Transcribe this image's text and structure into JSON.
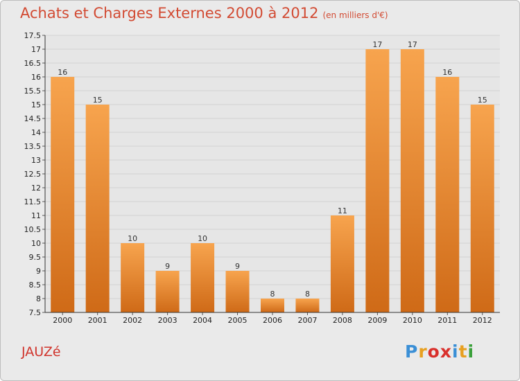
{
  "title": "Achats et Charges Externes 2000 à 2012",
  "subtitle": "(en milliers d'€)",
  "town": "JAUZé",
  "logo": {
    "text": "Proxiti",
    "colors": [
      "#3a8fd6",
      "#e8a020",
      "#d9302c",
      "#d9302c",
      "#3a8fd6",
      "#e8a020",
      "#3aa03a"
    ]
  },
  "chart_data": {
    "type": "bar",
    "categories": [
      "2000",
      "2001",
      "2002",
      "2003",
      "2004",
      "2005",
      "2006",
      "2007",
      "2008",
      "2009",
      "2010",
      "2011",
      "2012"
    ],
    "values": [
      16,
      15,
      10,
      9,
      10,
      9,
      8,
      8,
      11,
      17,
      17,
      16,
      15
    ],
    "value_labels": [
      "16",
      "15",
      "10",
      "9",
      "10",
      "9",
      "8",
      "8",
      "11",
      "17",
      "17",
      "16",
      "15"
    ],
    "ylim": [
      7.5,
      17.5
    ],
    "yticks": [
      "7.5",
      "8",
      "8.5",
      "9",
      "9.5",
      "10",
      "10.5",
      "11",
      "11.5",
      "12",
      "12.5",
      "13",
      "13.5",
      "14",
      "14.5",
      "15",
      "15.5",
      "16",
      "16.5",
      "17",
      "17.5"
    ],
    "grid": true,
    "bar_color_top": "#f7a44e",
    "bar_color_bottom": "#cf6a17"
  }
}
